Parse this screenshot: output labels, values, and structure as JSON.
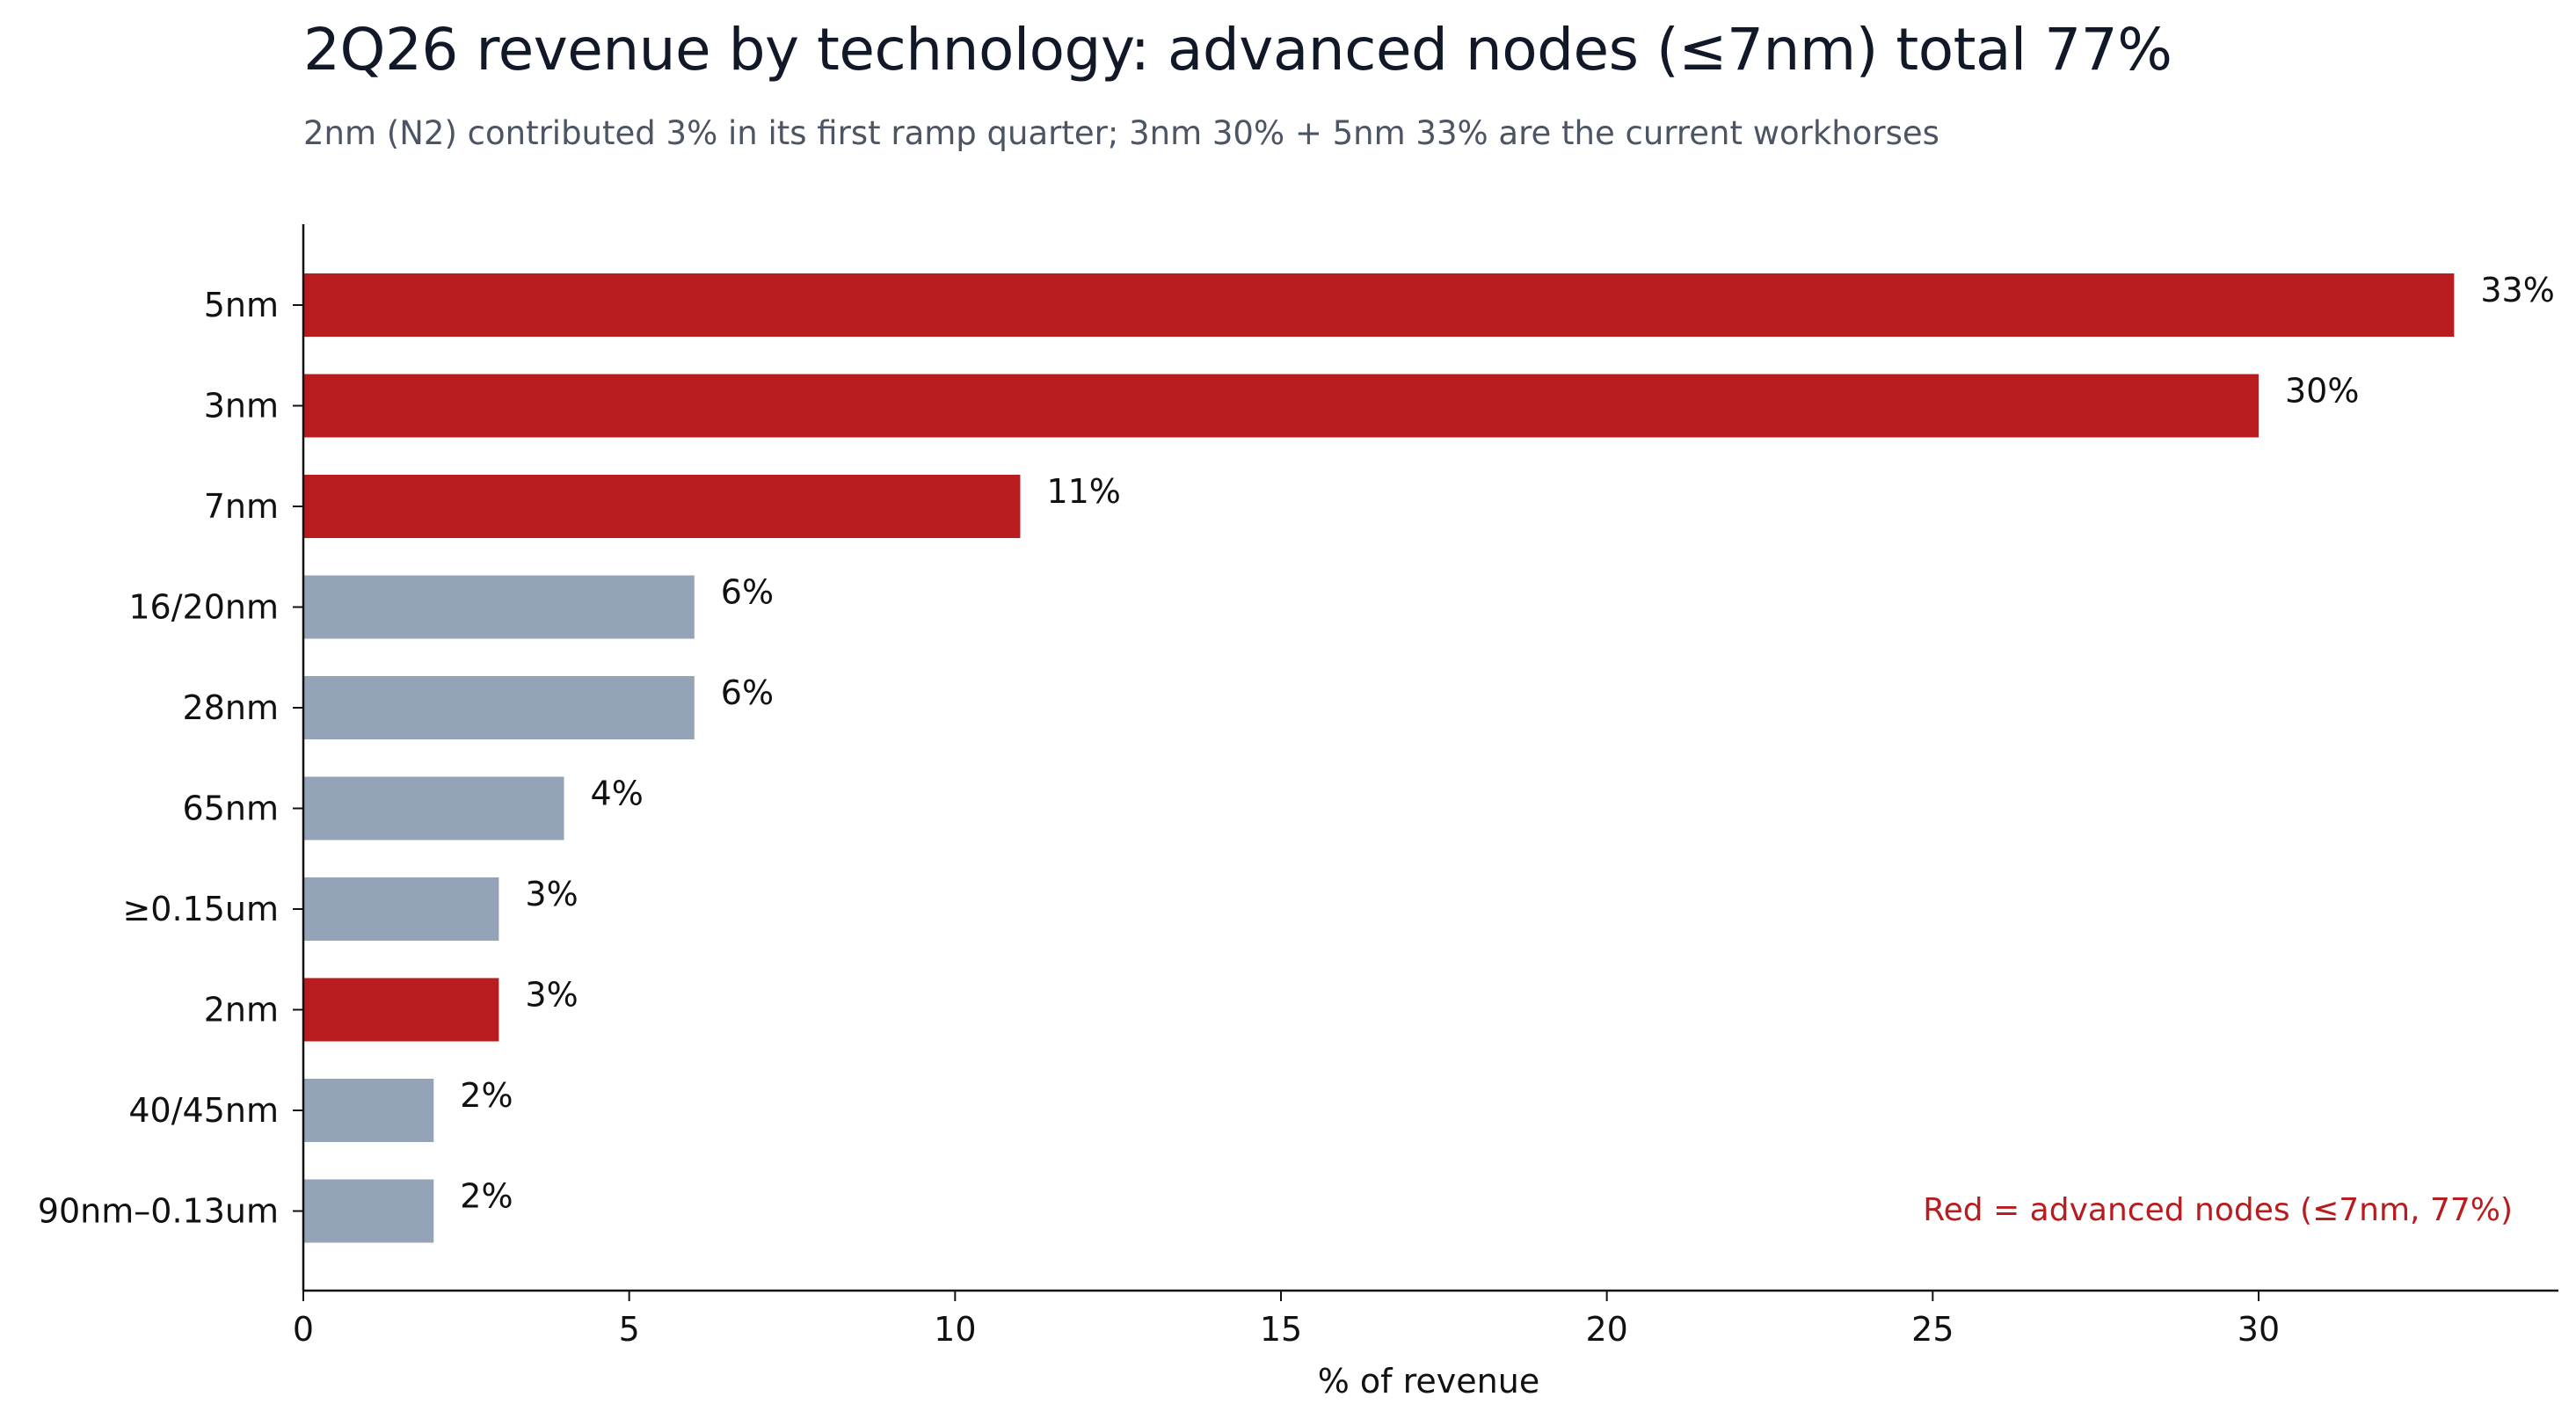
{
  "title": "2Q26 revenue by technology: advanced nodes (≤7nm) total 77%",
  "subtitle": "2nm (N2) contributed 3% in its first ramp quarter; 3nm 30% + 5nm 33% are the current workhorses",
  "colors": {
    "advanced": "#b91c1f",
    "other": "#94a3b8",
    "note": "#b91c1f"
  },
  "chart_data": {
    "type": "bar",
    "orientation": "horizontal",
    "categories": [
      "5nm",
      "3nm",
      "7nm",
      "16/20nm",
      "28nm",
      "65nm",
      "≥0.15um",
      "2nm",
      "40/45nm",
      "90nm–0.13um"
    ],
    "values": [
      33,
      30,
      11,
      6,
      6,
      4,
      3,
      3,
      2,
      2
    ],
    "value_labels": [
      "33%",
      "30%",
      "11%",
      "6%",
      "6%",
      "4%",
      "3%",
      "3%",
      "2%",
      "2%"
    ],
    "advanced": [
      true,
      true,
      true,
      false,
      false,
      false,
      false,
      true,
      false,
      false
    ],
    "xlabel": "% of revenue",
    "ylabel": "",
    "xlim": [
      0,
      34.6
    ],
    "xticks": [
      0,
      5,
      10,
      15,
      20,
      25,
      30
    ],
    "grid": false,
    "annotation": "Red = advanced nodes (≤7nm, 77%)"
  }
}
